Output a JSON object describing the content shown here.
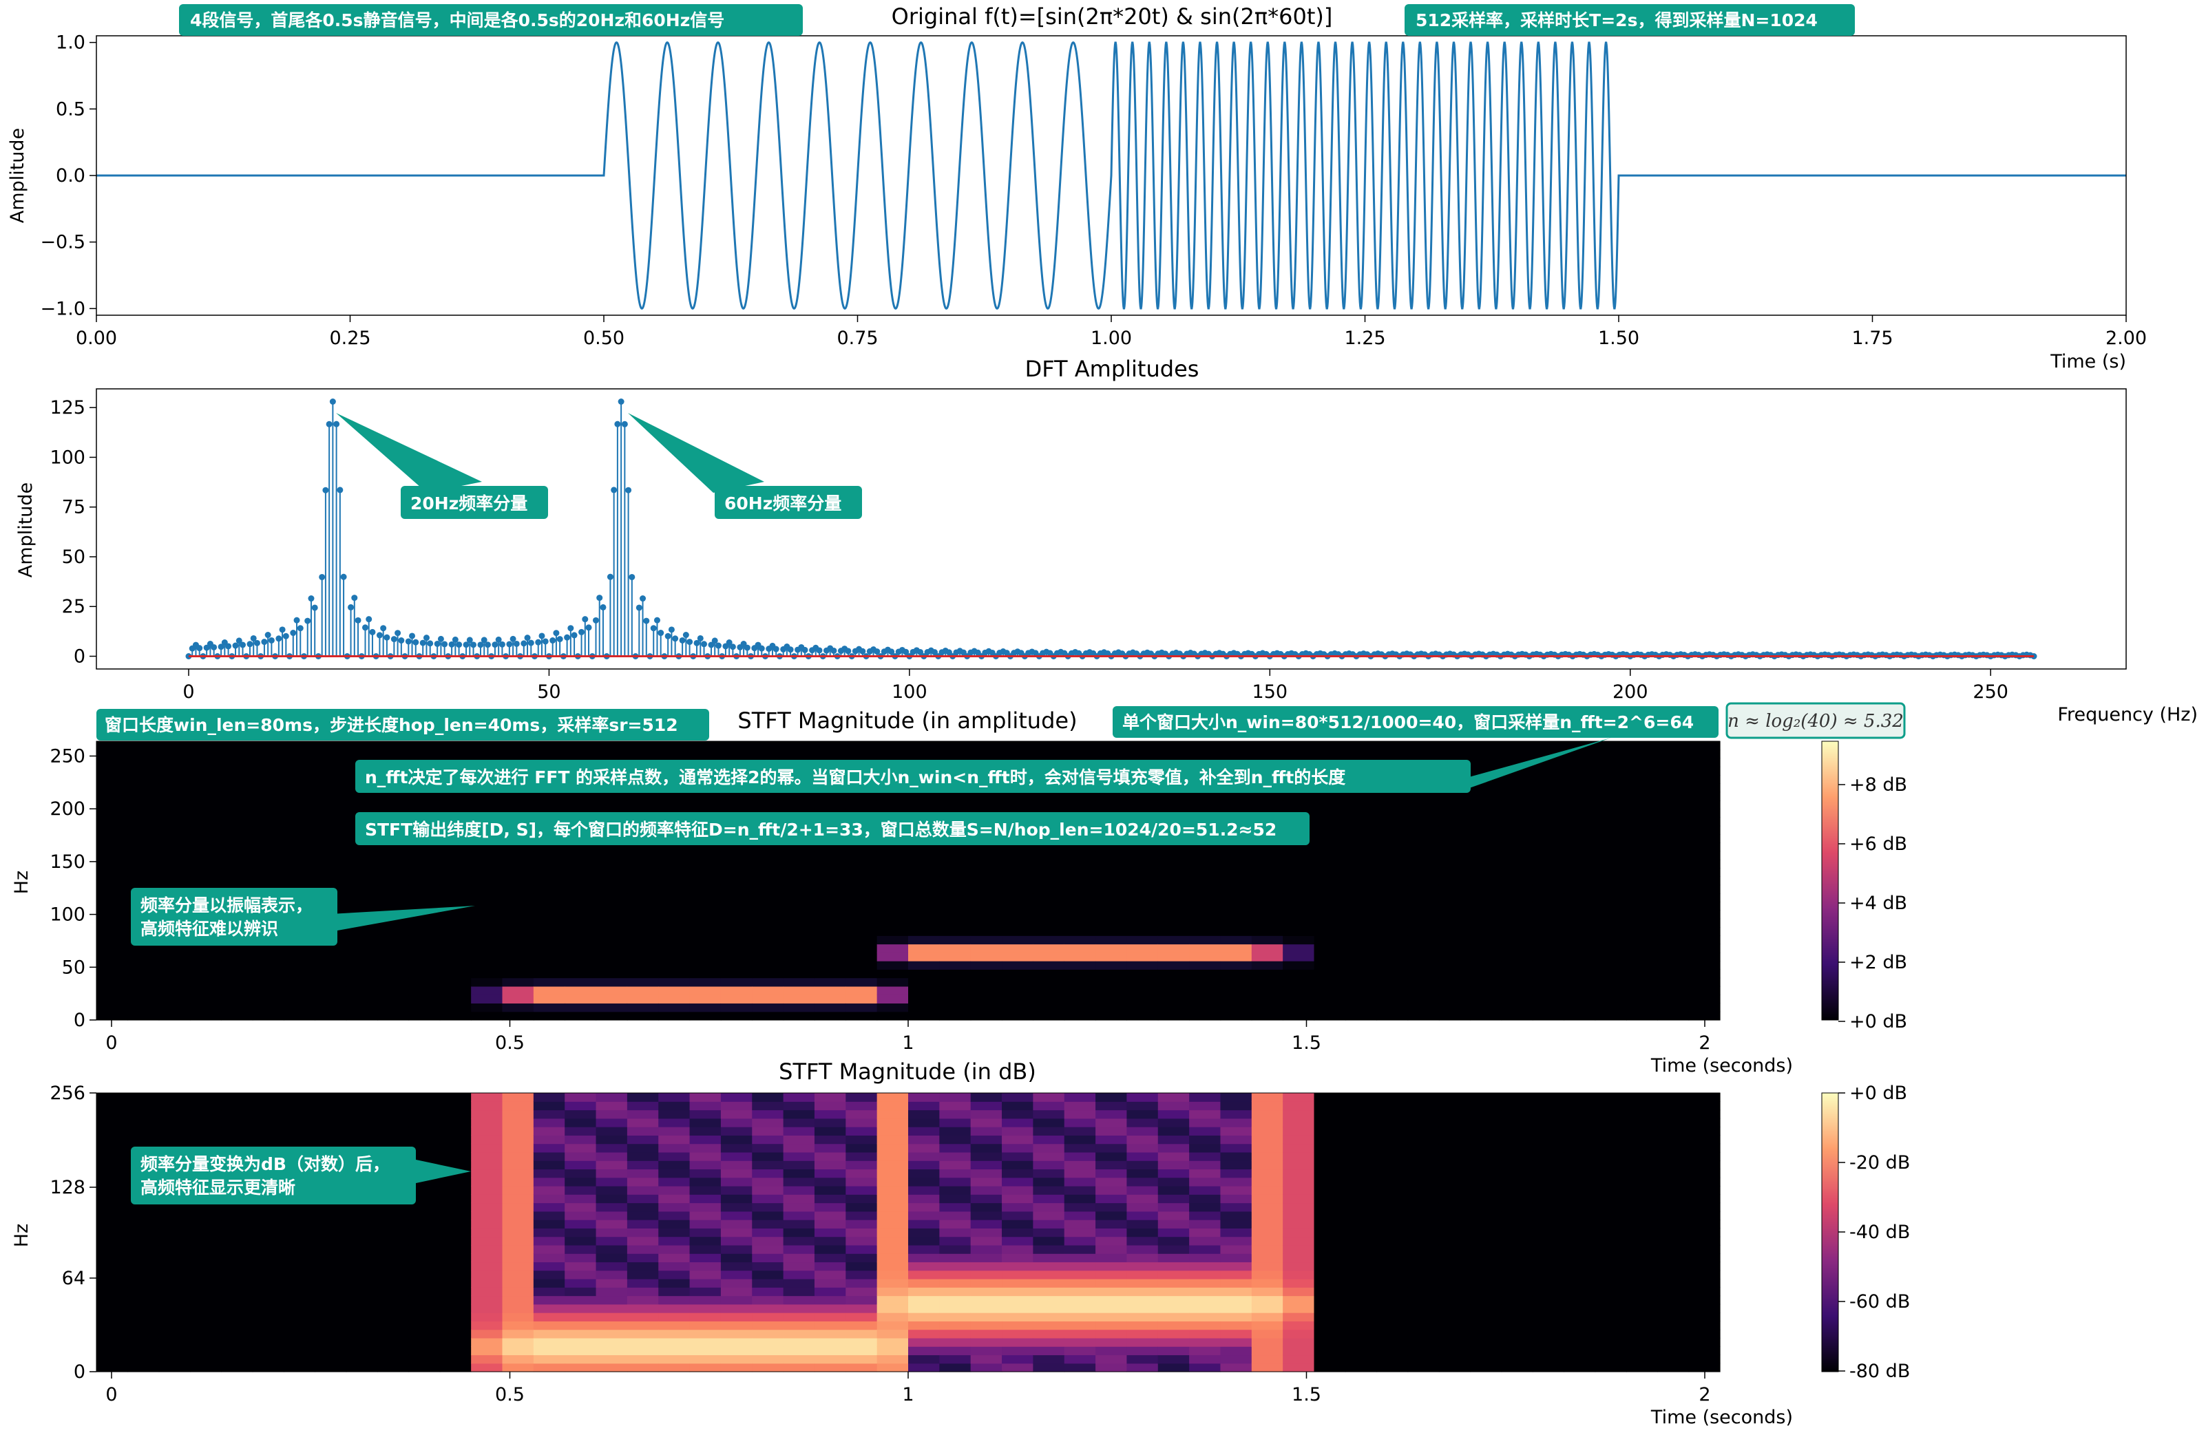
{
  "chart_data": [
    {
      "id": "signal",
      "type": "line",
      "title": "Original f(t)=[sin(2π*20t) & sin(2π*60t)]",
      "xlabel": "Time (s)",
      "ylabel": "Amplitude",
      "xlim": [
        0,
        2
      ],
      "ylim": [
        -1.05,
        1.05
      ],
      "xticks": [
        "0.00",
        "0.25",
        "0.50",
        "0.75",
        "1.00",
        "1.25",
        "1.50",
        "1.75",
        "2.00"
      ],
      "yticks": [
        "1.0",
        "0.5",
        "0.0",
        "−0.5",
        "−1.0"
      ],
      "segments": [
        {
          "t_start": 0.0,
          "t_end": 0.5,
          "freq_hz": 0
        },
        {
          "t_start": 0.5,
          "t_end": 1.0,
          "freq_hz": 20
        },
        {
          "t_start": 1.0,
          "t_end": 1.5,
          "freq_hz": 60
        },
        {
          "t_start": 1.5,
          "t_end": 2.0,
          "freq_hz": 0
        }
      ],
      "line_color": "#1f77b4",
      "annotations": [
        "4段信号，首尾各0.5s静音信号，中间是各0.5s的20Hz和60Hz信号",
        "512采样率，采样时长T=2s，得到采样量N=1024"
      ]
    },
    {
      "id": "dft",
      "type": "stem",
      "title": "DFT Amplitudes",
      "xlabel": "Frequency (Hz)",
      "ylabel": "Amplitude",
      "xlim": [
        -12.8,
        268.8
      ],
      "ylim": [
        -6.4,
        134.4
      ],
      "xticks": [
        "0",
        "50",
        "100",
        "150",
        "200",
        "250"
      ],
      "yticks": [
        "125",
        "100",
        "75",
        "50",
        "25",
        "0"
      ],
      "peaks": [
        {
          "freq_hz": 20,
          "amplitude": 128
        },
        {
          "freq_hz": 60,
          "amplitude": 128
        }
      ],
      "stem_color": "#1f77b4",
      "baseline_color": "#d62728",
      "annotations": [
        "20Hz频率分量",
        "60Hz频率分量"
      ]
    },
    {
      "id": "stft_amp",
      "type": "heatmap",
      "title": "STFT Magnitude (in amplitude)",
      "xlabel": "Time (seconds)",
      "ylabel": "Hz",
      "xticks": [
        "0",
        "0.5",
        "1",
        "1.5",
        "2"
      ],
      "yticks": [
        "250",
        "200",
        "150",
        "100",
        "50",
        "0"
      ],
      "colorbar_ticks": [
        "+8 dB",
        "+6 dB",
        "+4 dB",
        "+2 dB",
        "+0 dB"
      ],
      "colormap": "magma",
      "annotations": [
        "窗口长度win_len=80ms，步进长度hop_len=40ms，采样率sr=512",
        "单个窗口大小n_win=80*512/1000=40，窗口采样量n_fft=2^6=64",
        "n_fft决定了每次进行 FFT 的采样点数，通常选择2的幂。当窗口大小n_win<n_fft时，会对信号填充零值，补全到n_fft的长度",
        "STFT输出纬度[D, S]，每个窗口的频率特征D=n_fft/2+1=33，窗口总数量S=N/hop_len=1024/20=51.2≈52",
        "频率分量以振幅表示，",
        "高频特征难以辨识"
      ],
      "formula": "n ≈ log₂(40) ≈ 5.32"
    },
    {
      "id": "stft_db",
      "type": "heatmap",
      "title": "STFT Magnitude (in dB)",
      "xlabel": "Time (seconds)",
      "ylabel": "Hz",
      "xticks": [
        "0",
        "0.5",
        "1",
        "1.5",
        "2"
      ],
      "yticks": [
        "256",
        "128",
        "64",
        "0"
      ],
      "colorbar_ticks": [
        "+0 dB",
        "-20 dB",
        "-40 dB",
        "-60 dB",
        "-80 dB"
      ],
      "colormap": "magma",
      "annotations": [
        "频率分量变换为dB（对数）后，",
        "高频特征显示更清晰"
      ]
    }
  ],
  "colors": {
    "annotation_bg": "#0d9e8a",
    "formula_bg": "#e8f3ef",
    "formula_border": "#0d9e8a"
  }
}
